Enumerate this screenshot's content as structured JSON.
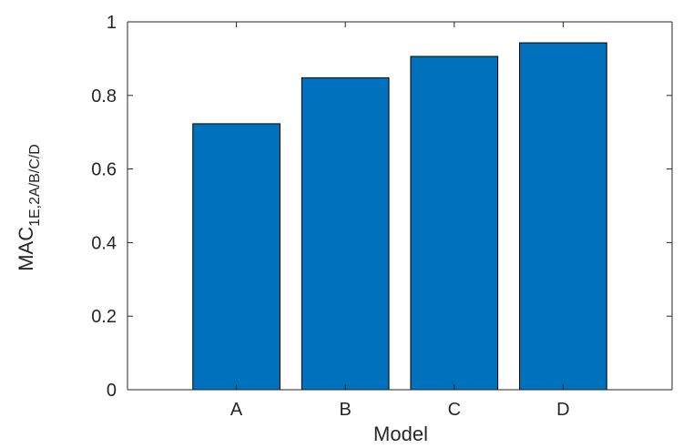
{
  "chart_data": {
    "type": "bar",
    "categories": [
      "A",
      "B",
      "C",
      "D"
    ],
    "values": [
      0.723,
      0.848,
      0.906,
      0.943
    ],
    "xlabel": "Model",
    "ylabel": {
      "main": "MAC",
      "subscript": "1E,2A/B/C/D"
    },
    "ylim": [
      0,
      1
    ],
    "yticks": [
      "0",
      "0.2",
      "0.4",
      "0.6",
      "0.8",
      "1"
    ],
    "ytick_values": [
      0,
      0.2,
      0.4,
      0.6,
      0.8,
      1
    ],
    "grid": false,
    "legend": "none",
    "bar_color": "#0072BD",
    "edge_color": "#000000"
  }
}
